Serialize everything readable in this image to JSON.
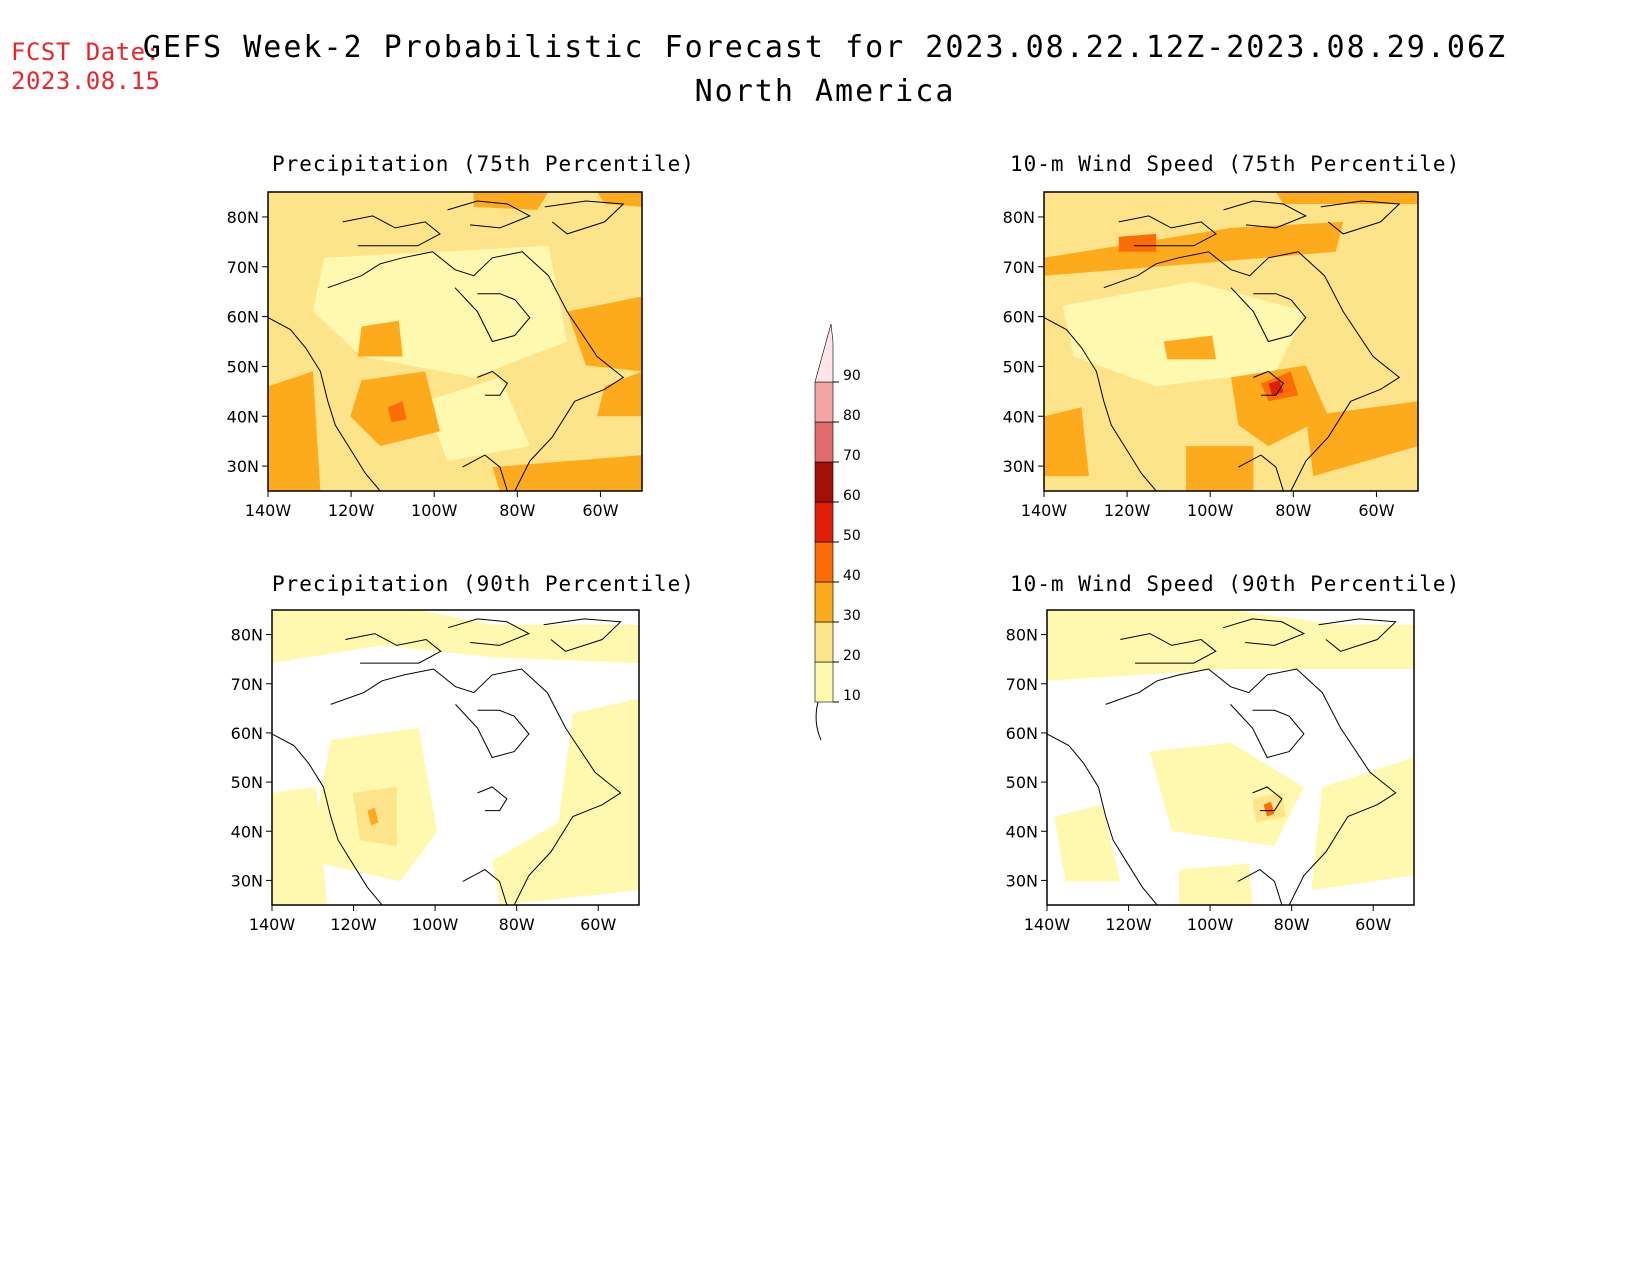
{
  "header": {
    "fcst_label": "FCST Date:",
    "fcst_date": "2023.08.15",
    "title": "GEFS Week-2 Probabilistic Forecast for 2023.08.22.12Z-2023.08.29.06Z",
    "subtitle": "North America"
  },
  "axes": {
    "lat_ticks": [
      "80N",
      "70N",
      "60N",
      "50N",
      "40N",
      "30N"
    ],
    "lon_ticks": [
      "140W",
      "120W",
      "100W",
      "80W",
      "60W"
    ]
  },
  "panels": [
    {
      "title": "Precipitation (75th Percentile)"
    },
    {
      "title": "10-m Wind Speed (75th Percentile)"
    },
    {
      "title": "Precipitation (90th Percentile)"
    },
    {
      "title": "10-m Wind Speed (90th Percentile)"
    }
  ],
  "colorbar": {
    "levels": [
      "10",
      "20",
      "30",
      "40",
      "50",
      "60",
      "70",
      "80",
      "90"
    ],
    "colors": [
      "#fff9b0",
      "#fde38a",
      "#fdab1c",
      "#fd6d07",
      "#e01e08",
      "#a50f06",
      "#e26c6c",
      "#f5a4a4",
      "#ffe5ea"
    ]
  }
}
